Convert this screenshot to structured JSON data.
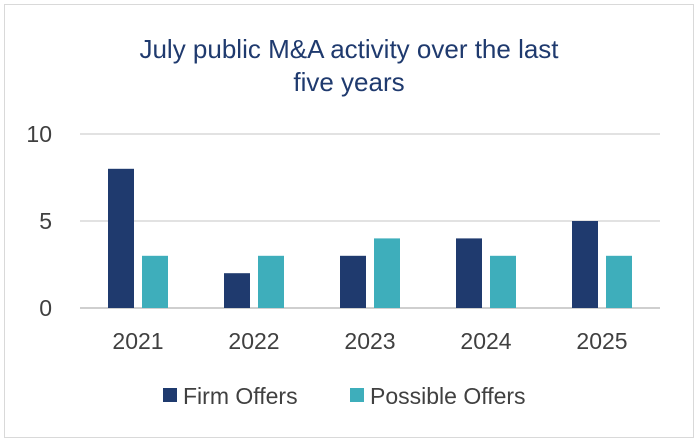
{
  "chart_data": {
    "type": "bar",
    "title": "July public M&A activity over the last five years",
    "title_lines": [
      "July public M&A activity over the last",
      "five years"
    ],
    "categories": [
      "2021",
      "2022",
      "2023",
      "2024",
      "2025"
    ],
    "series": [
      {
        "name": "Firm Offers",
        "values": [
          8,
          2,
          3,
          4,
          5
        ],
        "color": "#1f3a6e"
      },
      {
        "name": "Possible Offers",
        "values": [
          3,
          3,
          4,
          3,
          3
        ],
        "color": "#3eaebb"
      }
    ],
    "yticks": [
      0,
      5,
      10
    ],
    "ylim": [
      0,
      10
    ],
    "xlabel": "",
    "ylabel": "",
    "grid": true,
    "legend_position": "bottom"
  }
}
